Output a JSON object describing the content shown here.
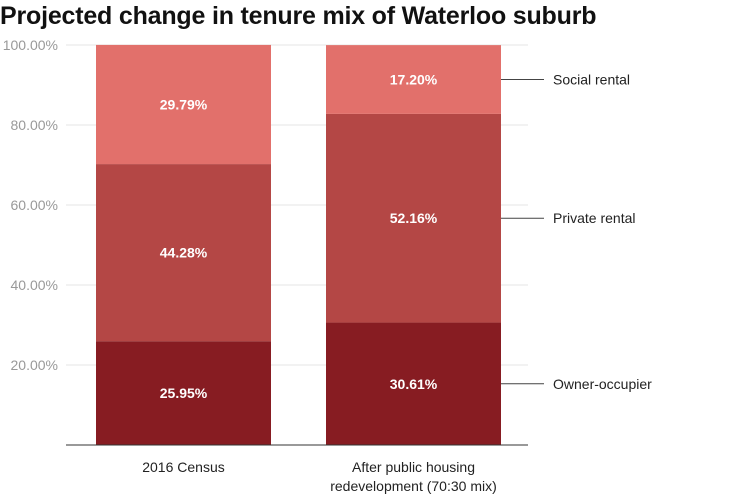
{
  "chart_data": {
    "type": "bar",
    "stacked": true,
    "title": "Projected change in tenure mix of Waterloo suburb",
    "categories": [
      [
        "2016 Census"
      ],
      [
        "After public housing",
        "redevelopment (70:30 mix)"
      ]
    ],
    "series": [
      {
        "name": "Owner-occupier",
        "color": "#871c22",
        "values": [
          25.95,
          30.61
        ],
        "labels": [
          "25.95%",
          "30.61%"
        ]
      },
      {
        "name": "Private rental",
        "color": "#b44745",
        "values": [
          44.28,
          52.16
        ],
        "labels": [
          "44.28%",
          "52.16%"
        ]
      },
      {
        "name": "Social rental",
        "color": "#e2706b",
        "values": [
          29.79,
          17.2
        ],
        "labels": [
          "29.79%",
          "17.20%"
        ]
      }
    ],
    "ylim": [
      0,
      100
    ],
    "yticks": [
      20,
      40,
      60,
      80,
      100
    ],
    "ytick_labels": [
      "20.00%",
      "40.00%",
      "60.00%",
      "80.00%",
      "100.00%"
    ],
    "grid": true,
    "legend": "right, direct labels"
  }
}
